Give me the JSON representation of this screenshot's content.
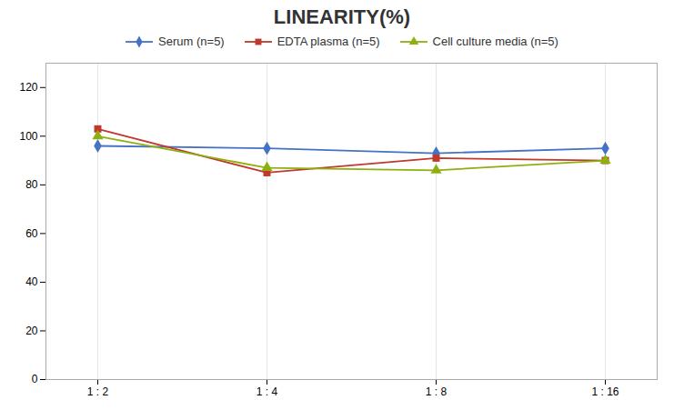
{
  "chart_data": {
    "type": "line",
    "title": "LINEARITY(%)",
    "categories": [
      "1 : 2",
      "1 : 4",
      "1 : 8",
      "1 : 16"
    ],
    "series": [
      {
        "name": "Serum (n=5)",
        "color": "#4472C4",
        "marker": "diamond",
        "values": [
          96,
          95,
          93,
          95
        ]
      },
      {
        "name": "EDTA plasma (n=5)",
        "color": "#C0392B",
        "marker": "square",
        "values": [
          103,
          85,
          91,
          90
        ]
      },
      {
        "name": "Cell culture media (n=5)",
        "color": "#8DB010",
        "marker": "triangle",
        "values": [
          100,
          87,
          86,
          90
        ]
      }
    ],
    "ylim": [
      0,
      130
    ],
    "yticks": [
      0,
      20,
      40,
      60,
      80,
      100,
      120
    ],
    "grid": "x",
    "legend": "top"
  }
}
